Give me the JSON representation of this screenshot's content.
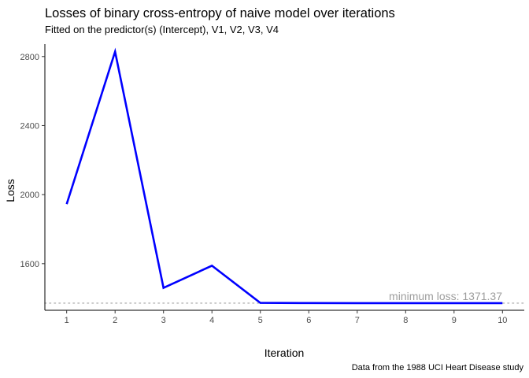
{
  "chart_data": {
    "type": "line",
    "title": "Losses of binary cross-entropy of naive model over iterations",
    "subtitle": "Fitted on the predictor(s) (Intercept), V1, V2, V3, V4",
    "xlabel": "Iteration",
    "ylabel": "Loss",
    "caption": "Data from the 1988 UCI Heart Disease study",
    "x": [
      1,
      2,
      3,
      4,
      5,
      6,
      7,
      8,
      9,
      10
    ],
    "xticks": [
      "1",
      "2",
      "3",
      "4",
      "5",
      "6",
      "7",
      "8",
      "9",
      "10"
    ],
    "yticks": [
      1600,
      2000,
      2400,
      2800
    ],
    "ytick_labels": [
      "1600",
      "2000",
      "2400",
      "2800"
    ],
    "xlim": [
      0.55,
      10.45
    ],
    "ylim": [
      1330,
      2872
    ],
    "series": [
      {
        "values": [
          1945,
          2828,
          1460,
          1588,
          1373,
          1372,
          1371.5,
          1371.4,
          1371.37,
          1371.37
        ],
        "color": "#0000ff"
      }
    ],
    "reference_line": {
      "y": 1371.37,
      "style": "dotted",
      "color": "#bdbdbd"
    },
    "annotation": "minimum loss: 1371.37",
    "annotation_color": "#9e9e9e",
    "grid": false
  }
}
